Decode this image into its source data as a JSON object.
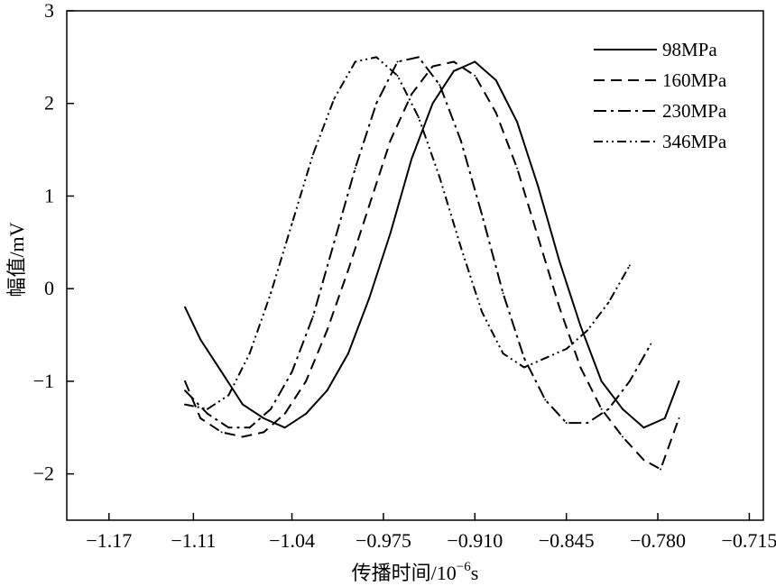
{
  "chart_data": {
    "type": "line",
    "title": "",
    "xlabel": "传播时间/10",
    "xlabel_exponent": "−6",
    "xlabel_unit": "s",
    "ylabel": "幅值/mV",
    "xlim": [
      -1.2,
      -0.705
    ],
    "ylim": [
      -2.5,
      3
    ],
    "x_ticks": [
      -1.17,
      -1.11,
      -1.04,
      -0.975,
      -0.91,
      -0.845,
      -0.78,
      -0.715
    ],
    "x_tick_labels": [
      "−1.17",
      "−1.11",
      "−1.04",
      "−0.975",
      "−0.910",
      "−0.845",
      "−0.780",
      "−0.715"
    ],
    "y_ticks": [
      -2,
      -1,
      0,
      1,
      2,
      3
    ],
    "y_tick_labels": [
      "−2",
      "−1",
      "0",
      "1",
      "2",
      "3"
    ],
    "grid": false,
    "legend_position": "top-right",
    "series": [
      {
        "name": "98MPa",
        "style": "solid",
        "x": [
          -1.116,
          -1.105,
          -1.09,
          -1.075,
          -1.06,
          -1.045,
          -1.03,
          -1.015,
          -1.0,
          -0.985,
          -0.97,
          -0.955,
          -0.94,
          -0.925,
          -0.91,
          -0.895,
          -0.88,
          -0.865,
          -0.85,
          -0.835,
          -0.82,
          -0.805,
          -0.79,
          -0.775,
          -0.765
        ],
        "y": [
          -0.2,
          -0.55,
          -0.9,
          -1.25,
          -1.4,
          -1.5,
          -1.35,
          -1.1,
          -0.7,
          -0.1,
          0.6,
          1.4,
          2.0,
          2.35,
          2.45,
          2.25,
          1.8,
          1.1,
          0.3,
          -0.4,
          -1.0,
          -1.3,
          -1.5,
          -1.4,
          -1.0
        ]
      },
      {
        "name": "160MPa",
        "style": "dashed",
        "x": [
          -1.116,
          -1.105,
          -1.09,
          -1.075,
          -1.06,
          -1.045,
          -1.03,
          -1.015,
          -1.0,
          -0.985,
          -0.97,
          -0.955,
          -0.94,
          -0.925,
          -0.91,
          -0.895,
          -0.88,
          -0.865,
          -0.85,
          -0.835,
          -0.82,
          -0.805,
          -0.79,
          -0.778,
          -0.765
        ],
        "y": [
          -1.0,
          -1.4,
          -1.55,
          -1.6,
          -1.55,
          -1.35,
          -1.0,
          -0.45,
          0.2,
          0.9,
          1.6,
          2.1,
          2.4,
          2.45,
          2.3,
          1.9,
          1.3,
          0.55,
          -0.2,
          -0.85,
          -1.3,
          -1.6,
          -1.85,
          -1.95,
          -1.4
        ]
      },
      {
        "name": "230MPa",
        "style": "dashdot",
        "x": [
          -1.116,
          -1.1,
          -1.085,
          -1.07,
          -1.055,
          -1.04,
          -1.025,
          -1.01,
          -0.995,
          -0.98,
          -0.965,
          -0.95,
          -0.935,
          -0.92,
          -0.905,
          -0.89,
          -0.875,
          -0.86,
          -0.845,
          -0.83,
          -0.815,
          -0.8,
          -0.785
        ],
        "y": [
          -1.1,
          -1.35,
          -1.5,
          -1.5,
          -1.3,
          -0.9,
          -0.3,
          0.5,
          1.3,
          2.0,
          2.45,
          2.5,
          2.2,
          1.6,
          0.8,
          -0.05,
          -0.75,
          -1.2,
          -1.45,
          -1.45,
          -1.3,
          -1.0,
          -0.6
        ]
      },
      {
        "name": "346MPa",
        "style": "dashdotdot",
        "x": [
          -1.116,
          -1.1,
          -1.085,
          -1.07,
          -1.055,
          -1.04,
          -1.025,
          -1.01,
          -0.995,
          -0.98,
          -0.965,
          -0.95,
          -0.935,
          -0.92,
          -0.905,
          -0.89,
          -0.875,
          -0.86,
          -0.845,
          -0.83,
          -0.815,
          -0.8
        ],
        "y": [
          -1.25,
          -1.3,
          -1.15,
          -0.7,
          -0.05,
          0.7,
          1.45,
          2.05,
          2.45,
          2.5,
          2.3,
          1.85,
          1.2,
          0.45,
          -0.25,
          -0.7,
          -0.85,
          -0.75,
          -0.65,
          -0.45,
          -0.15,
          0.25
        ]
      }
    ]
  }
}
